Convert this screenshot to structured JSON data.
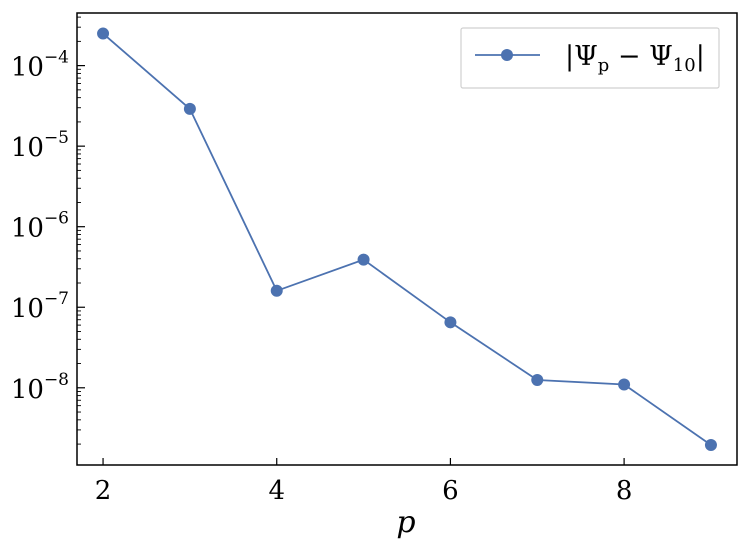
{
  "chart_data": {
    "type": "line",
    "x": [
      2,
      3,
      4,
      5,
      6,
      7,
      8,
      9
    ],
    "series": [
      {
        "name": "|Ψp − Ψ10|",
        "legend_parts": {
          "open": "|Ψ",
          "sub1": "p",
          "mid": " − Ψ",
          "sub2": "10",
          "close": "|"
        },
        "values": [
          0.00025,
          2.9e-05,
          1.6e-07,
          3.9e-07,
          6.5e-08,
          1.25e-08,
          1.1e-08,
          1.95e-09
        ],
        "color": "#4c72b0"
      }
    ],
    "xlabel": "p",
    "x_ticks": [
      2,
      4,
      6,
      8
    ],
    "y_scale": "log",
    "y_ticks": [
      {
        "value": 1e-08,
        "base": "10",
        "exp": "−8"
      },
      {
        "value": 1e-07,
        "base": "10",
        "exp": "−7"
      },
      {
        "value": 1e-06,
        "base": "10",
        "exp": "−6"
      },
      {
        "value": 1e-05,
        "base": "10",
        "exp": "−5"
      },
      {
        "value": 0.0001,
        "base": "10",
        "exp": "−4"
      }
    ],
    "xlim": [
      1.7,
      9.3
    ],
    "ylim": [
      1.1e-09,
      0.00045
    ],
    "grid": false,
    "legend_position": "top-right"
  }
}
